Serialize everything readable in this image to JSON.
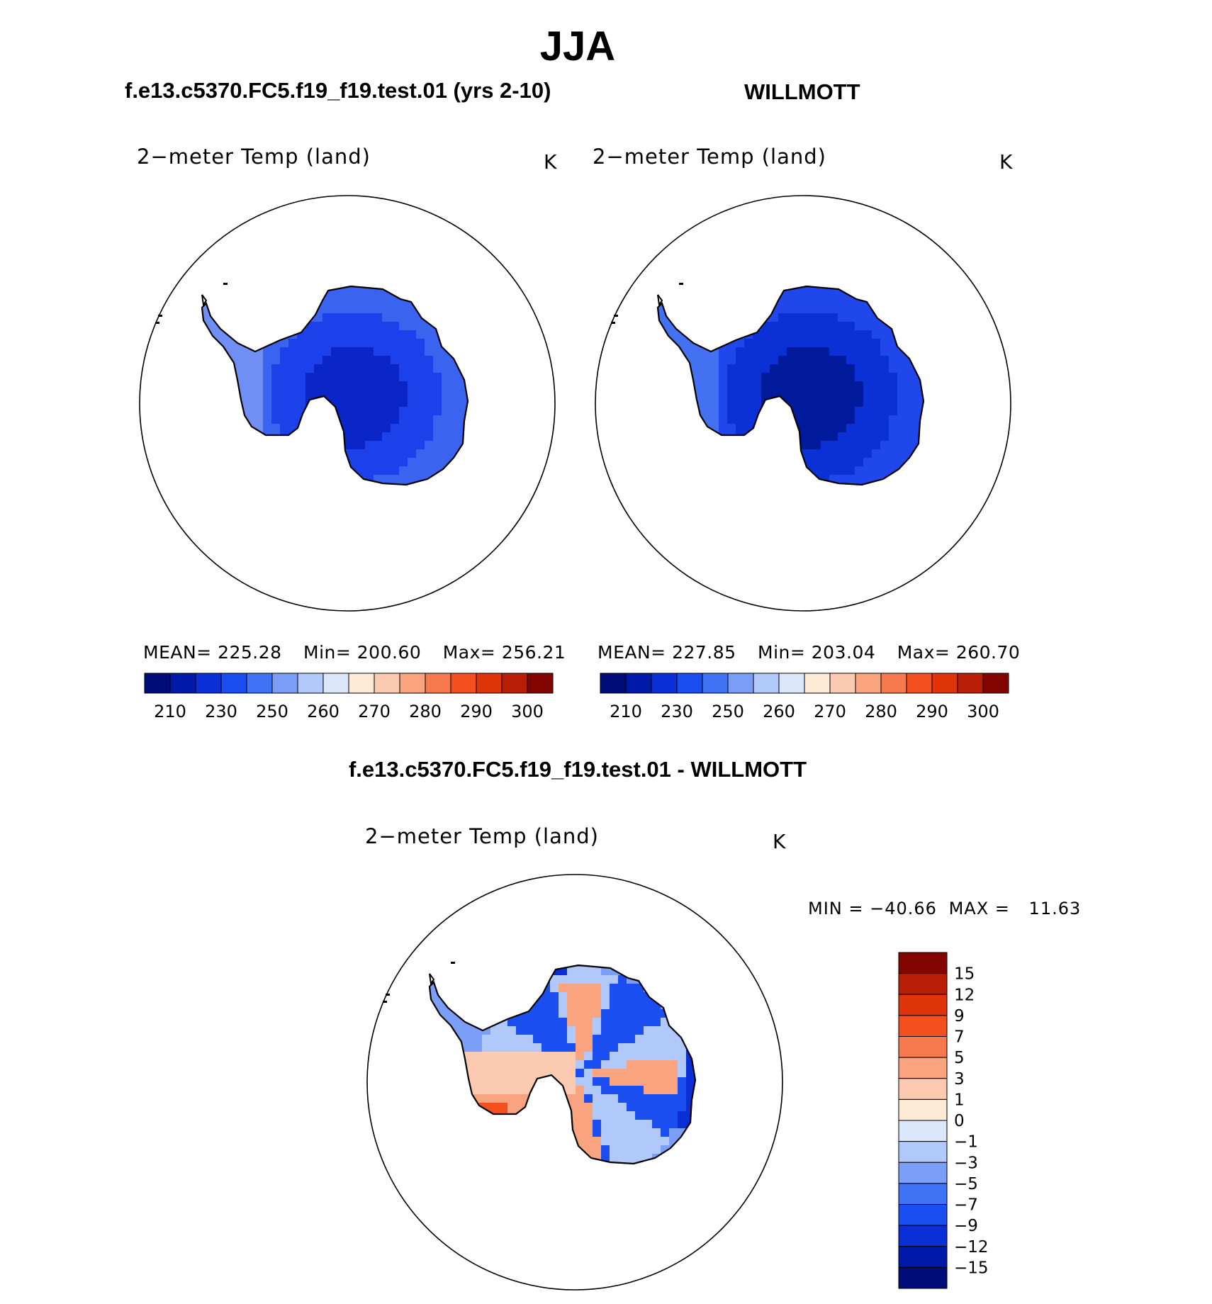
{
  "figure": {
    "season_title": "JJA",
    "left_heading": "f.e13.c5370.FC5.f19_f19.test.01 (yrs 2-10)",
    "right_heading": "WILLMOTT",
    "diff_heading": "f.e13.c5370.FC5.f19_f19.test.01 - WILLMOTT"
  },
  "chart_data": [
    {
      "type": "heatmap",
      "panel": "model",
      "title": "2−meter Temp (land)",
      "units": "K",
      "stats": {
        "mean_label": "MEAN=",
        "mean": "225.28",
        "min_label": "Min=",
        "min": "200.60",
        "max_label": "Max=",
        "max": "256.21"
      },
      "colorbar": {
        "orientation": "horizontal",
        "tick_labels": [
          "210",
          "230",
          "250",
          "260",
          "270",
          "280",
          "290",
          "300"
        ],
        "colors": [
          "#000d78",
          "#0019a8",
          "#0a2fd6",
          "#1a4ef0",
          "#3f72f4",
          "#7b9ff7",
          "#b0c8fa",
          "#dbe8fc",
          "#fdebd8",
          "#fbcab0",
          "#f9a37f",
          "#f77a4e",
          "#f4501f",
          "#df3508",
          "#b81e05",
          "#820500"
        ]
      },
      "field_colors": [
        "#0a25c8",
        "#1c40ea",
        "#3a63f0",
        "#6f8ff5"
      ]
    },
    {
      "type": "heatmap",
      "panel": "observations",
      "title": "2−meter Temp (land)",
      "units": "K",
      "stats": {
        "mean_label": "MEAN=",
        "mean": "227.85",
        "min_label": "Min=",
        "min": "203.04",
        "max_label": "Max=",
        "max": "260.70"
      },
      "colorbar": {
        "orientation": "horizontal",
        "tick_labels": [
          "210",
          "230",
          "250",
          "260",
          "270",
          "280",
          "290",
          "300"
        ],
        "colors": [
          "#000d78",
          "#0019a8",
          "#0a2fd6",
          "#1a4ef0",
          "#3f72f4",
          "#7b9ff7",
          "#b0c8fa",
          "#dbe8fc",
          "#fdebd8",
          "#fbcab0",
          "#f9a37f",
          "#f77a4e",
          "#f4501f",
          "#df3508",
          "#b81e05",
          "#820500"
        ]
      },
      "field_colors": [
        "#001a9c",
        "#0a30d6",
        "#1f47ec",
        "#4470f2"
      ]
    },
    {
      "type": "heatmap",
      "panel": "difference",
      "title": "2−meter Temp (land)",
      "units": "K",
      "minmax": {
        "min_label": "MIN =",
        "min": "−40.66",
        "max_label": "MAX =",
        "max": "11.63"
      },
      "colorbar": {
        "orientation": "vertical",
        "tick_labels": [
          "15",
          "12",
          "9",
          "7",
          "5",
          "3",
          "1",
          "0",
          "−1",
          "−3",
          "−5",
          "−7",
          "−9",
          "−12",
          "−15"
        ],
        "colors": [
          "#820500",
          "#b81e05",
          "#df3508",
          "#f4501f",
          "#f77a4e",
          "#f9a37f",
          "#fbcab0",
          "#fdebd8",
          "#dbe8fc",
          "#b0c8fa",
          "#7b9ff7",
          "#3f72f4",
          "#1a4ef0",
          "#0a2fd6",
          "#0019a8",
          "#000d78"
        ]
      }
    }
  ]
}
